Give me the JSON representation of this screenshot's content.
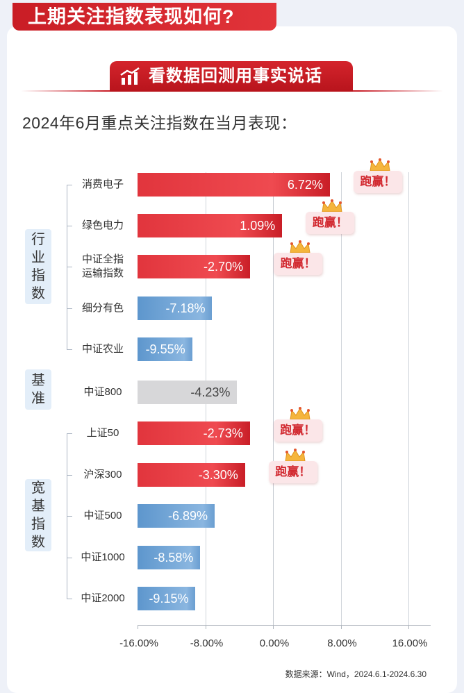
{
  "page_title": "上期关注指数表现如何?",
  "subtitle": "看数据回测用事实说话",
  "chart_heading": "2024年6月重点关注指数在当月表现：",
  "source": "数据来源：Wind，2024.6.1-2024.6.30",
  "badge_text": "跑赢！",
  "groups": [
    {
      "label": "行业指数",
      "chars": [
        "行",
        "业",
        "指",
        "数"
      ]
    },
    {
      "label": "基准",
      "chars": [
        "基",
        "准"
      ]
    },
    {
      "label": "宽基指数",
      "chars": [
        "宽",
        "基",
        "指",
        "数"
      ]
    }
  ],
  "colors": {
    "outperform": "#e1353d",
    "underperform": "#6a9ed1",
    "benchmark": "#d7d7d9",
    "accent": "#c81e28"
  },
  "chart_data": {
    "type": "bar",
    "orientation": "horizontal",
    "categories": [
      "消费电子",
      "绿色电力",
      "中证全指运输指数",
      "细分有色",
      "中证农业",
      "中证800",
      "上证50",
      "沪深300",
      "中证500",
      "中证1000",
      "中证2000"
    ],
    "category_lines": [
      [
        "消费电子"
      ],
      [
        "绿色电力"
      ],
      [
        "中证全指",
        "运输指数"
      ],
      [
        "细分有色"
      ],
      [
        "中证农业"
      ],
      [
        "中证800"
      ],
      [
        "上证50"
      ],
      [
        "沪深300"
      ],
      [
        "中证500"
      ],
      [
        "中证1000"
      ],
      [
        "中证2000"
      ]
    ],
    "values": [
      6.72,
      1.09,
      -2.7,
      -7.18,
      -9.55,
      -4.23,
      -2.73,
      -3.3,
      -6.89,
      -8.58,
      -9.15
    ],
    "value_labels": [
      "6.72%",
      "1.09%",
      "-2.70%",
      "-7.18%",
      "-9.55%",
      "-4.23%",
      "-2.73%",
      "-3.30%",
      "-6.89%",
      "-8.58%",
      "-9.15%"
    ],
    "status": [
      "outperform",
      "outperform",
      "outperform",
      "underperform",
      "underperform",
      "benchmark",
      "outperform",
      "outperform",
      "underperform",
      "underperform",
      "underperform"
    ],
    "outperform_badge": [
      true,
      true,
      true,
      false,
      false,
      false,
      true,
      true,
      false,
      false,
      false
    ],
    "xlim": [
      -16,
      16
    ],
    "xticks": [
      -16,
      -8,
      0,
      8,
      16
    ],
    "xtick_labels": [
      "-16.00%",
      "-8.00%",
      "0.00%",
      "8.00%",
      "16.00%"
    ],
    "grid": true,
    "title": "2024年6月重点关注指数在当月表现：",
    "xlabel": "",
    "ylabel": ""
  }
}
